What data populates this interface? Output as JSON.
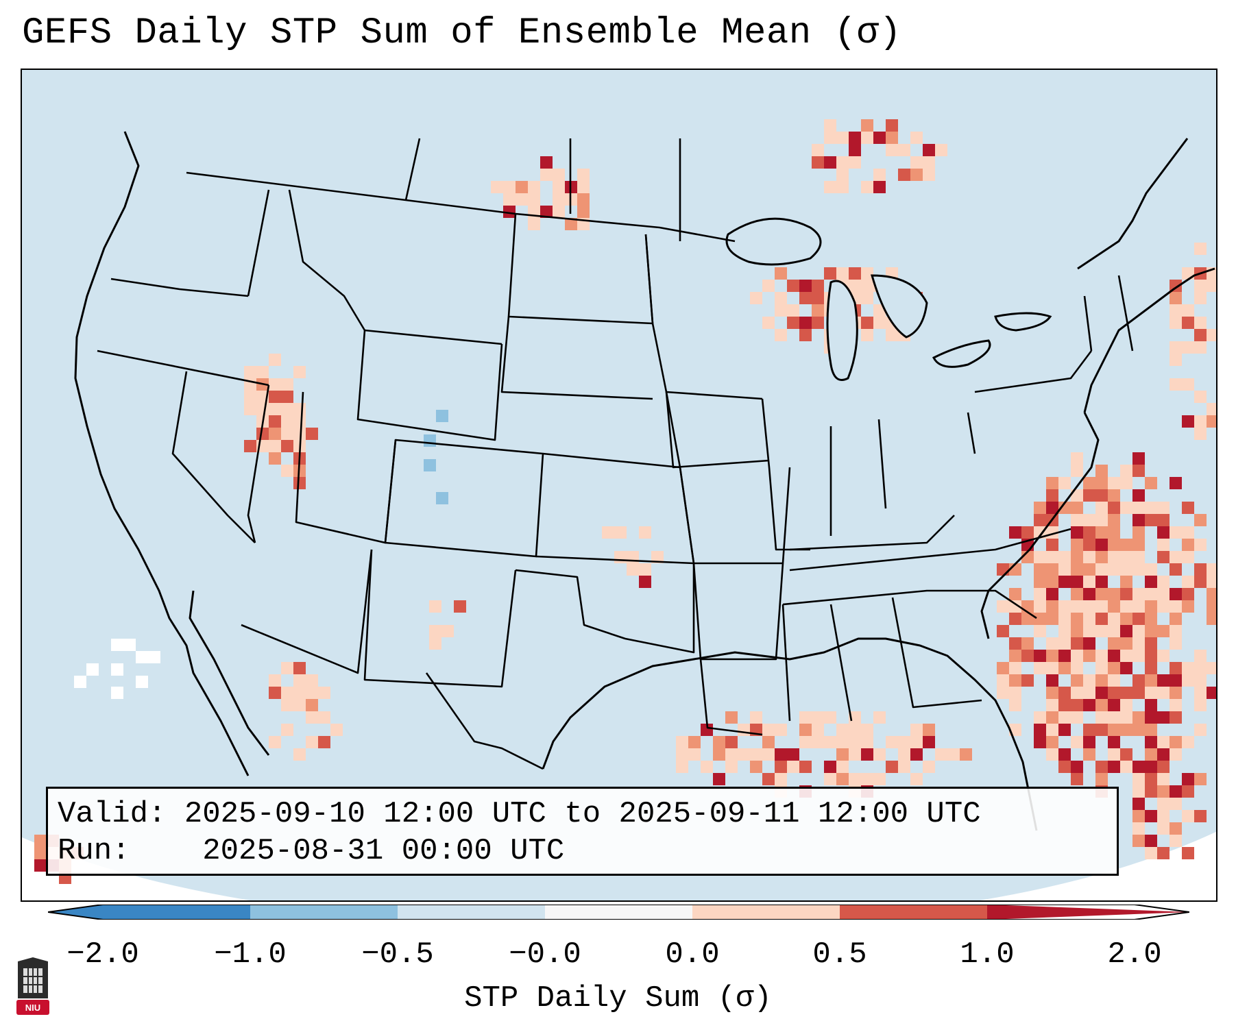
{
  "title": "GEFS Daily STP Sum of Ensemble Mean (σ)",
  "info": {
    "valid_label": "Valid:",
    "valid_range": "2025-09-10 12:00 UTC to 2025-09-11 12:00 UTC",
    "run_label": "Run:",
    "run_time": "2025-08-31 00:00 UTC"
  },
  "colorbar": {
    "label": "STP Daily Sum (σ)",
    "ticks": [
      "−2.0",
      "−1.0",
      "−0.5",
      "−0.0",
      "0.0",
      "0.5",
      "1.0",
      "2.0"
    ],
    "colors": [
      "#3a86c4",
      "#8ec1df",
      "#d1e4ef",
      "#f7f7f7",
      "#fcd6c2",
      "#ee9474",
      "#d6584a",
      "#b2182b"
    ]
  },
  "logo": {
    "text": "NIU"
  },
  "map": {
    "background_color": "#d1e4ef",
    "region": "Contiguous United States",
    "features": [
      "state-borders",
      "coastlines",
      "great-lakes",
      "gulf-of-mexico",
      "atlantic-ocean",
      "pacific-ocean"
    ]
  }
}
